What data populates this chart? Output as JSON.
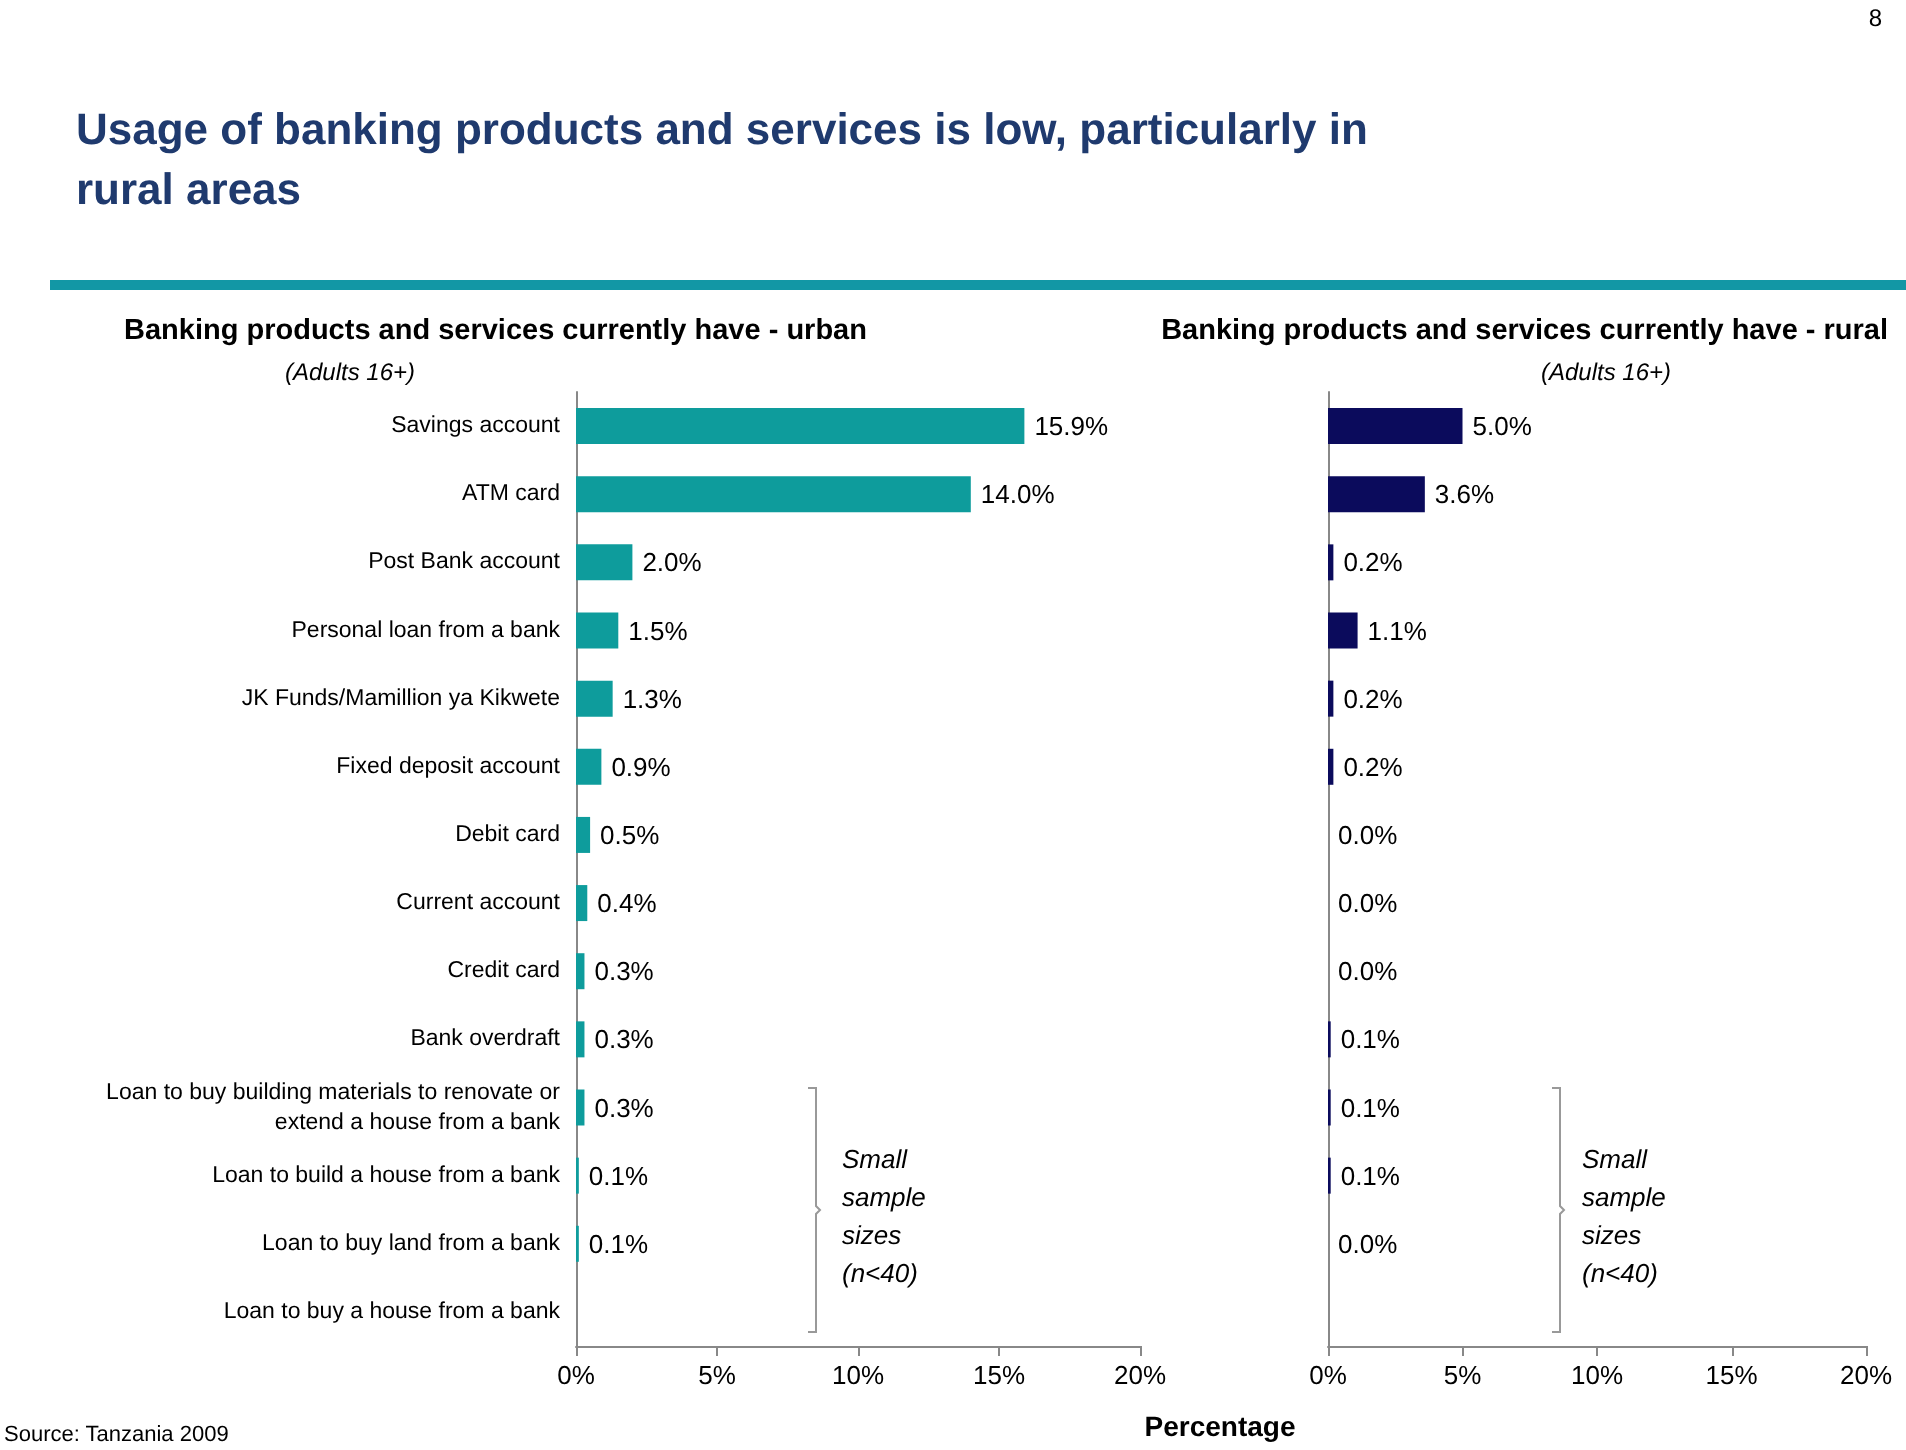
{
  "chart_data": [
    {
      "type": "bar",
      "orientation": "horizontal",
      "title": "Banking products and services currently have - urban",
      "subtitle": "(Adults 16+)",
      "xlabel": "Percentage",
      "categories": [
        "Savings account",
        "ATM card",
        "Post Bank account",
        "Personal loan from a bank",
        "JK Funds/Mamillion ya Kikwete",
        "Fixed deposit account",
        "Debit card",
        "Current account",
        "Credit card",
        "Bank overdraft",
        "Loan to buy building materials to renovate or extend a house from a bank",
        "Loan to build a house from a bank",
        "Loan to buy land from a bank",
        "Loan to buy a house from a bank"
      ],
      "series": [
        {
          "color": "#0e9c9c",
          "values": [
            15.9,
            14.0,
            2.0,
            1.5,
            1.3,
            0.9,
            0.5,
            0.4,
            0.3,
            0.3,
            0.3,
            0.1,
            0.1,
            null
          ],
          "value_labels": [
            "15.9%",
            "14.0%",
            "2.0%",
            "1.5%",
            "1.3%",
            "0.9%",
            "0.5%",
            "0.4%",
            "0.3%",
            "0.3%",
            "0.3%",
            "0.1%",
            "0.1%",
            null
          ]
        }
      ],
      "xlim": [
        0,
        20
      ],
      "xticks": [
        {
          "value": 0,
          "label": "0%"
        },
        {
          "value": 5,
          "label": "5%"
        },
        {
          "value": 10,
          "label": "10%"
        },
        {
          "value": 15,
          "label": "15%"
        },
        {
          "value": 20,
          "label": "20%"
        }
      ],
      "grid": false,
      "annotations": [
        "Usage of banking products and services is low, particularly in rural areas",
        "8",
        "Small sample sizes (n<40)",
        "Source: Tanzania 2009"
      ]
    },
    {
      "type": "bar",
      "orientation": "horizontal",
      "title": "Banking products and services currently have - rural",
      "subtitle": "(Adults 16+)",
      "tick_labels": "x",
      "categories": [
        "Savings account",
        "ATM card",
        "Post Bank account",
        "Personal loan from a bank",
        "JK Funds/Mamillion ya Kikwete",
        "Fixed deposit account",
        "Debit card",
        "Current account",
        "Credit card",
        "Bank overdraft",
        "Loan to buy building materials to renovate or extend a house from a bank",
        "Loan to build a house from a bank",
        "Loan to buy land from a bank",
        "Loan to buy a house from a bank"
      ],
      "series": [
        {
          "color": "#0b0b5c",
          "values": [
            5.0,
            3.6,
            0.2,
            1.1,
            0.2,
            0.2,
            0.0,
            0.0,
            0.0,
            0.1,
            0.1,
            0.1,
            0.0,
            null
          ],
          "value_labels": [
            "5.0%",
            "3.6%",
            "0.2%",
            "1.1%",
            "0.2%",
            "0.2%",
            "0.0%",
            "0.0%",
            "0.0%",
            "0.1%",
            "0.1%",
            "0.1%",
            "0.0%",
            null
          ]
        }
      ],
      "xlim": [
        0,
        20
      ],
      "xticks": [
        {
          "value": 0,
          "label": "0%"
        },
        {
          "value": 5,
          "label": "5%"
        },
        {
          "value": 10,
          "label": "10%"
        },
        {
          "value": 15,
          "label": "15%"
        },
        {
          "value": 20,
          "label": "20%"
        }
      ],
      "grid": false,
      "annotations": [
        "Small sample sizes (n<40)"
      ]
    }
  ]
}
